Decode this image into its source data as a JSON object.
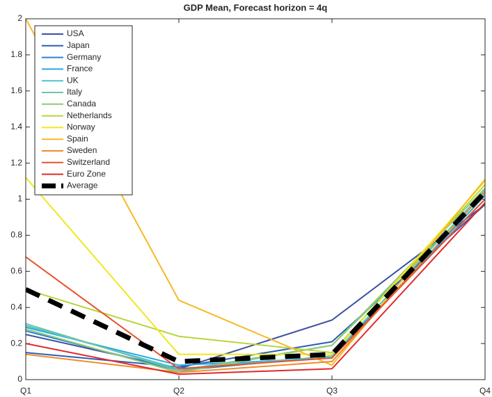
{
  "chart_data": {
    "type": "line",
    "title": "GDP Mean, Forecast horizon = 4q",
    "categories": [
      "Q1",
      "Q2",
      "Q3",
      "Q4"
    ],
    "ylim": [
      0,
      2
    ],
    "yticks": [
      0,
      0.2,
      0.4,
      0.6,
      0.8,
      1,
      1.2,
      1.4,
      1.6,
      1.8,
      2
    ],
    "legend": "upper-left",
    "series": [
      {
        "name": "USA",
        "color": "#3b4f9e",
        "values": [
          0.25,
          0.06,
          0.33,
          0.97
        ]
      },
      {
        "name": "Japan",
        "color": "#2c5fb3",
        "values": [
          0.15,
          0.07,
          0.21,
          0.97
        ]
      },
      {
        "name": "Germany",
        "color": "#2a82d2",
        "values": [
          0.27,
          0.05,
          0.13,
          1.0
        ]
      },
      {
        "name": "France",
        "color": "#29a9e1",
        "values": [
          0.29,
          0.08,
          0.12,
          1.02
        ]
      },
      {
        "name": "UK",
        "color": "#4cc4cf",
        "values": [
          0.3,
          0.06,
          0.13,
          1.05
        ]
      },
      {
        "name": "Italy",
        "color": "#6ec5a2",
        "values": [
          0.31,
          0.05,
          0.19,
          1.03
        ]
      },
      {
        "name": "Canada",
        "color": "#92c872",
        "values": [
          0.28,
          0.04,
          0.19,
          1.06
        ]
      },
      {
        "name": "Netherlands",
        "color": "#b9d43e",
        "values": [
          0.5,
          0.24,
          0.15,
          1.08
        ]
      },
      {
        "name": "Norway",
        "color": "#efe81c",
        "values": [
          1.12,
          0.14,
          0.14,
          1.1
        ]
      },
      {
        "name": "Spain",
        "color": "#f7b922",
        "values": [
          2.0,
          0.44,
          0.08,
          1.11
        ]
      },
      {
        "name": "Sweden",
        "color": "#f08a2a",
        "values": [
          0.14,
          0.04,
          0.1,
          1.04
        ]
      },
      {
        "name": "Switzerland",
        "color": "#e8522b",
        "values": [
          0.68,
          0.06,
          0.12,
          1.0
        ]
      },
      {
        "name": "Euro Zone",
        "color": "#e0292a",
        "values": [
          0.2,
          0.03,
          0.06,
          0.98
        ]
      },
      {
        "name": "Average",
        "color": "#000000",
        "dashed": true,
        "values": [
          0.5,
          0.1,
          0.14,
          1.04
        ]
      }
    ]
  }
}
